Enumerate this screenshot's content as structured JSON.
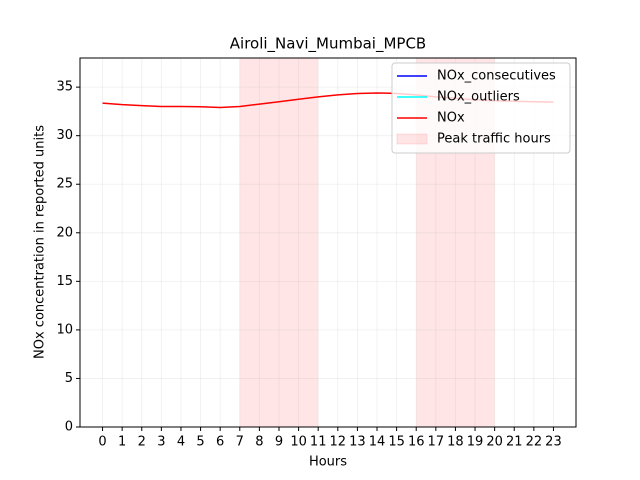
{
  "chart_data": {
    "type": "line",
    "title": "Airoli_Navi_Mumbai_MPCB",
    "x_label": "Hours",
    "y_label": "NOx concentration in reported units",
    "x": [
      0,
      1,
      2,
      3,
      4,
      5,
      6,
      7,
      8,
      9,
      10,
      11,
      12,
      13,
      14,
      15,
      16,
      17,
      18,
      19,
      20,
      21,
      22,
      23
    ],
    "series": [
      {
        "name": "NOx_consecutives",
        "color": "#0000ff",
        "values": [
          null,
          null,
          null,
          null,
          null,
          null,
          null,
          null,
          null,
          null,
          null,
          null,
          null,
          null,
          null,
          null,
          null,
          null,
          null,
          null,
          null,
          null,
          null,
          null
        ]
      },
      {
        "name": "NOx_outliers",
        "color": "#00ffff",
        "values": [
          null,
          null,
          null,
          null,
          null,
          null,
          null,
          null,
          null,
          null,
          null,
          null,
          null,
          null,
          null,
          null,
          null,
          null,
          null,
          null,
          null,
          null,
          null,
          null
        ]
      },
      {
        "name": "NOx",
        "color": "#ff0000",
        "values": [
          33.35,
          33.2,
          33.1,
          33.0,
          33.0,
          32.98,
          32.9,
          33.0,
          33.25,
          33.5,
          33.75,
          34.0,
          34.2,
          34.35,
          34.4,
          34.35,
          34.2,
          34.0,
          33.85,
          33.7,
          33.6,
          33.55,
          33.5,
          33.45
        ]
      }
    ],
    "spans": {
      "name": "Peak traffic hours",
      "color": "#ff0000",
      "ranges": [
        [
          7,
          11
        ],
        [
          16,
          20
        ]
      ]
    },
    "xlim": [
      -1.15,
      24.15
    ],
    "xticks": [
      0,
      1,
      2,
      3,
      4,
      5,
      6,
      7,
      8,
      9,
      10,
      11,
      12,
      13,
      14,
      15,
      16,
      17,
      18,
      19,
      20,
      21,
      22,
      23
    ],
    "ylim": [
      0,
      38
    ],
    "yticks": [
      0,
      5,
      10,
      15,
      20,
      25,
      30,
      35
    ],
    "grid": true,
    "legend": "upper right"
  }
}
